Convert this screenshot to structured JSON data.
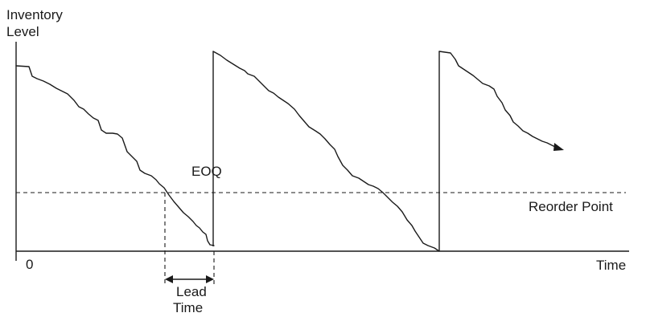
{
  "labels": {
    "y_axis_line1": "Inventory",
    "y_axis_line2": "Level",
    "x_axis": "Time",
    "origin": "0",
    "eoq": "EOQ",
    "reorder_point": "Reorder Point",
    "lead_time_line1": "Lead",
    "lead_time_line2": "Time"
  }
}
